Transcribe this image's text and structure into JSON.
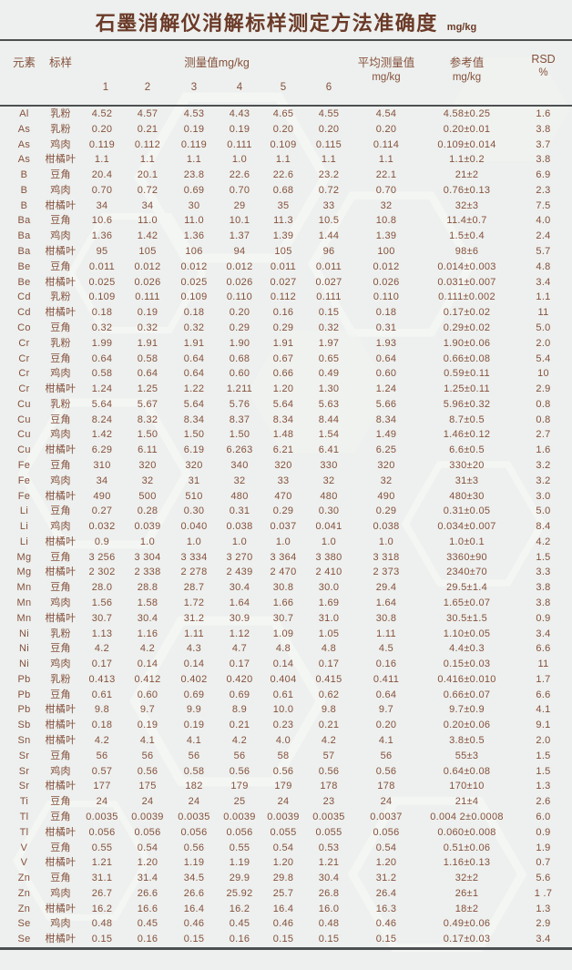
{
  "colors": {
    "background": "#edf0ee",
    "text_brown": "#85503c",
    "title_brown": "#6b3a28",
    "rule_gray": "#4d5051"
  },
  "title": {
    "text": "石墨消解仪消解标样测定方法准确度",
    "unit": "mg/kg"
  },
  "table": {
    "headers": {
      "element": "元素",
      "sample": "标样",
      "measurements": "测量值mg/kg",
      "measurement_cols": [
        "1",
        "2",
        "3",
        "4",
        "5",
        "6"
      ],
      "average_label": "平均测量值",
      "average_unit": "mg/kg",
      "reference_label": "参考值",
      "reference_unit": "mg/kg",
      "rsd_label": "RSD",
      "rsd_unit": "%"
    },
    "columns": [
      "element",
      "sample",
      "1",
      "2",
      "3",
      "4",
      "5",
      "6",
      "average",
      "reference",
      "rsd"
    ],
    "rows": [
      [
        "Al",
        "乳粉",
        "4.52",
        "4.57",
        "4.53",
        "4.43",
        "4.65",
        "4.55",
        "4.54",
        "4.58±0.25",
        "1.6"
      ],
      [
        "As",
        "乳粉",
        "0.20",
        "0.21",
        "0.19",
        "0.19",
        "0.20",
        "0.20",
        "0.20",
        "0.20±0.01",
        "3.8"
      ],
      [
        "As",
        "鸡肉",
        "0.119",
        "0.112",
        "0.119",
        "0.111",
        "0.109",
        "0.115",
        "0.114",
        "0.109±0.014",
        "3.7"
      ],
      [
        "As",
        "柑橘叶",
        "1.1",
        "1.1",
        "1.1",
        "1.0",
        "1.1",
        "1.1",
        "1.1",
        "1.1±0.2",
        "3.8"
      ],
      [
        "B",
        "豆角",
        "20.4",
        "20.1",
        "23.8",
        "22.6",
        "22.6",
        "23.2",
        "22.1",
        "21±2",
        "6.9"
      ],
      [
        "B",
        "鸡肉",
        "0.70",
        "0.72",
        "0.69",
        "0.70",
        "0.68",
        "0.72",
        "0.70",
        "0.76±0.13",
        "2.3"
      ],
      [
        "B",
        "柑橘叶",
        "34",
        "34",
        "30",
        "29",
        "35",
        "33",
        "32",
        "32±3",
        "7.5"
      ],
      [
        "Ba",
        "豆角",
        "10.6",
        "11.0",
        "11.0",
        "10.1",
        "11.3",
        "10.5",
        "10.8",
        "11.4±0.7",
        "4.0"
      ],
      [
        "Ba",
        "鸡肉",
        "1.36",
        "1.42",
        "1.36",
        "1.37",
        "1.39",
        "1.44",
        "1.39",
        "1.5±0.4",
        "2.4"
      ],
      [
        "Ba",
        "柑橘叶",
        "95",
        "105",
        "106",
        "94",
        "105",
        "96",
        "100",
        "98±6",
        "5.7"
      ],
      [
        "Be",
        "豆角",
        "0.011",
        "0.012",
        "0.012",
        "0.012",
        "0.011",
        "0.011",
        "0.012",
        "0.014±0.003",
        "4.8"
      ],
      [
        "Be",
        "柑橘叶",
        "0.025",
        "0.026",
        "0.025",
        "0.026",
        "0.027",
        "0.027",
        "0.026",
        "0.031±0.007",
        "3.4"
      ],
      [
        "Cd",
        "乳粉",
        "0.109",
        "0.111",
        "0.109",
        "0.110",
        "0.112",
        "0.111",
        "0.110",
        "0.111±0.002",
        "1.1"
      ],
      [
        "Cd",
        "柑橘叶",
        "0.18",
        "0.19",
        "0.18",
        "0.20",
        "0.16",
        "0.15",
        "0.18",
        "0.17±0.02",
        "11"
      ],
      [
        "Co",
        "豆角",
        "0.32",
        "0.32",
        "0.32",
        "0.29",
        "0.29",
        "0.32",
        "0.31",
        "0.29±0.02",
        "5.0"
      ],
      [
        "Cr",
        "乳粉",
        "1.99",
        "1.91",
        "1.91",
        "1.90",
        "1.91",
        "1.97",
        "1.93",
        "1.90±0.06",
        "2.0"
      ],
      [
        "Cr",
        "豆角",
        "0.64",
        "0.58",
        "0.64",
        "0.68",
        "0.67",
        "0.65",
        "0.64",
        "0.66±0.08",
        "5.4"
      ],
      [
        "Cr",
        "鸡肉",
        "0.58",
        "0.64",
        "0.64",
        "0.60",
        "0.66",
        "0.49",
        "0.60",
        "0.59±0.11",
        "10"
      ],
      [
        "Cr",
        "柑橘叶",
        "1.24",
        "1.25",
        "1.22",
        "1.211",
        "1.20",
        "1.30",
        "1.24",
        "1.25±0.11",
        "2.9"
      ],
      [
        "Cu",
        "乳粉",
        "5.64",
        "5.67",
        "5.64",
        "5.76",
        "5.64",
        "5.63",
        "5.66",
        "5.96±0.32",
        "0.8"
      ],
      [
        "Cu",
        "豆角",
        "8.24",
        "8.32",
        "8.34",
        "8.37",
        "8.34",
        "8.44",
        "8.34",
        "8.7±0.5",
        "0.8"
      ],
      [
        "Cu",
        "鸡肉",
        "1.42",
        "1.50",
        "1.50",
        "1.50",
        "1.48",
        "1.54",
        "1.49",
        "1.46±0.12",
        "2.7"
      ],
      [
        "Cu",
        "柑橘叶",
        "6.29",
        "6.11",
        "6.19",
        "6.263",
        "6.21",
        "6.41",
        "6.25",
        "6.6±0.5",
        "1.6"
      ],
      [
        "Fe",
        "豆角",
        "310",
        "320",
        "320",
        "340",
        "320",
        "330",
        "320",
        "330±20",
        "3.2"
      ],
      [
        "Fe",
        "鸡肉",
        "34",
        "32",
        "31",
        "32",
        "33",
        "32",
        "32",
        "31±3",
        "3.2"
      ],
      [
        "Fe",
        "柑橘叶",
        "490",
        "500",
        "510",
        "480",
        "470",
        "480",
        "490",
        "480±30",
        "3.0"
      ],
      [
        "Li",
        "豆角",
        "0.27",
        "0.28",
        "0.30",
        "0.31",
        "0.29",
        "0.30",
        "0.29",
        "0.31±0.05",
        "5.0"
      ],
      [
        "Li",
        "鸡肉",
        "0.032",
        "0.039",
        "0.040",
        "0.038",
        "0.037",
        "0.041",
        "0.038",
        "0.034±0.007",
        "8.4"
      ],
      [
        "Li",
        "柑橘叶",
        "0.9",
        "1.0",
        "1.0",
        "1.0",
        "1.0",
        "1.0",
        "1.0",
        "1.0±0.1",
        "4.2"
      ],
      [
        "Mg",
        "豆角",
        "3 256",
        "3 304",
        "3 334",
        "3 270",
        "3 364",
        "3 380",
        "3 318",
        "3360±90",
        "1.5"
      ],
      [
        "Mg",
        "柑橘叶",
        "2 302",
        "2 338",
        "2 278",
        "2 439",
        "2 470",
        "2 410",
        "2 373",
        "2340±70",
        "3.3"
      ],
      [
        "Mn",
        "豆角",
        "28.0",
        "28.8",
        "28.7",
        "30.4",
        "30.8",
        "30.0",
        "29.4",
        "29.5±1.4",
        "3.8"
      ],
      [
        "Mn",
        "鸡肉",
        "1.56",
        "1.58",
        "1.72",
        "1.64",
        "1.66",
        "1.69",
        "1.64",
        "1.65±0.07",
        "3.8"
      ],
      [
        "Mn",
        "柑橘叶",
        "30.7",
        "30.4",
        "31.2",
        "30.9",
        "30.7",
        "31.0",
        "30.8",
        "30.5±1.5",
        "0.9"
      ],
      [
        "Ni",
        "乳粉",
        "1.13",
        "1.16",
        "1.11",
        "1.12",
        "1.09",
        "1.05",
        "1.11",
        "1.10±0.05",
        "3.4"
      ],
      [
        "Ni",
        "豆角",
        "4.2",
        "4.2",
        "4.3",
        "4.7",
        "4.8",
        "4.8",
        "4.5",
        "4.4±0.3",
        "6.6"
      ],
      [
        "Ni",
        "鸡肉",
        "0.17",
        "0.14",
        "0.14",
        "0.17",
        "0.14",
        "0.17",
        "0.16",
        "0.15±0.03",
        "11"
      ],
      [
        "Pb",
        "乳粉",
        "0.413",
        "0.412",
        "0.402",
        "0.420",
        "0.404",
        "0.415",
        "0.411",
        "0.416±0.010",
        "1.7"
      ],
      [
        "Pb",
        "豆角",
        "0.61",
        "0.60",
        "0.69",
        "0.69",
        "0.61",
        "0.62",
        "0.64",
        "0.66±0.07",
        "6.6"
      ],
      [
        "Pb",
        "柑橘叶",
        "9.8",
        "9.7",
        "9.9",
        "8.9",
        "10.0",
        "9.8",
        "9.7",
        "9.7±0.9",
        "4.1"
      ],
      [
        "Sb",
        "柑橘叶",
        "0.18",
        "0.19",
        "0.19",
        "0.21",
        "0.23",
        "0.21",
        "0.20",
        "0.20±0.06",
        "9.1"
      ],
      [
        "Sn",
        "柑橘叶",
        "4.2",
        "4.1",
        "4.1",
        "4.2",
        "4.0",
        "4.2",
        "4.1",
        "3.8±0.5",
        "2.0"
      ],
      [
        "Sr",
        "豆角",
        "56",
        "56",
        "56",
        "56",
        "58",
        "57",
        "56",
        "55±3",
        "1.5"
      ],
      [
        "Sr",
        "鸡肉",
        "0.57",
        "0.56",
        "0.58",
        "0.56",
        "0.56",
        "0.56",
        "0.56",
        "0.64±0.08",
        "1.5"
      ],
      [
        "Sr",
        "柑橘叶",
        "177",
        "175",
        "182",
        "179",
        "179",
        "178",
        "178",
        "170±10",
        "1.3"
      ],
      [
        "Ti",
        "豆角",
        "24",
        "24",
        "24",
        "25",
        "24",
        "23",
        "24",
        "21±4",
        "2.6"
      ],
      [
        "Tl",
        "豆角",
        "0.0035",
        "0.0039",
        "0.0035",
        "0.0039",
        "0.0039",
        "0.0035",
        "0.0037",
        "0.004 2±0.0008",
        "6.0"
      ],
      [
        "Tl",
        "柑橘叶",
        "0.056",
        "0.056",
        "0.056",
        "0.056",
        "0.055",
        "0.055",
        "0.056",
        "0.060±0.008",
        "0.9"
      ],
      [
        "V",
        "豆角",
        "0.55",
        "0.54",
        "0.56",
        "0.55",
        "0.54",
        "0.53",
        "0.54",
        "0.51±0.06",
        "1.9"
      ],
      [
        "V",
        "柑橘叶",
        "1.21",
        "1.20",
        "1.19",
        "1.19",
        "1.20",
        "1.21",
        "1.20",
        "1.16±0.13",
        "0.7"
      ],
      [
        "Zn",
        "豆角",
        "31.1",
        "31.4",
        "34.5",
        "29.9",
        "29.8",
        "30.4",
        "31.2",
        "32±2",
        "5.6"
      ],
      [
        "Zn",
        "鸡肉",
        "26.7",
        "26.6",
        "26.6",
        "25.92",
        "25.7",
        "26.8",
        "26.4",
        "26±1",
        "1 .7"
      ],
      [
        "Zn",
        "柑橘叶",
        "16.2",
        "16.6",
        "16.4",
        "16.2",
        "16.4",
        "16.0",
        "16.3",
        "18±2",
        "1.3"
      ],
      [
        "Se",
        "鸡肉",
        "0.48",
        "0.45",
        "0.46",
        "0.45",
        "0.46",
        "0.48",
        "0.46",
        "0.49±0.06",
        "2.9"
      ],
      [
        "Se",
        "柑橘叶",
        "0.15",
        "0.16",
        "0.15",
        "0.16",
        "0.15",
        "0.15",
        "0.15",
        "0.17±0.03",
        "3.4"
      ]
    ]
  }
}
